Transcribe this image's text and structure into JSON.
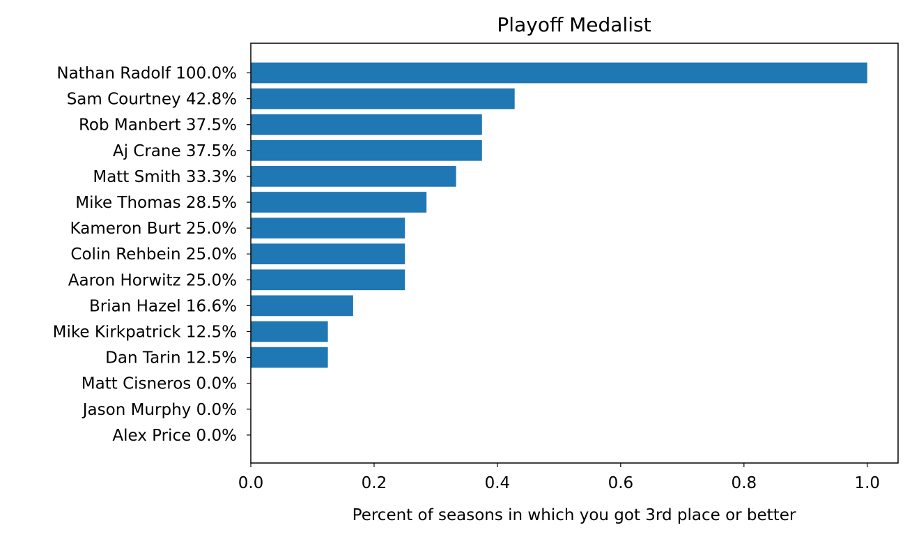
{
  "chart_data": {
    "type": "bar",
    "orientation": "horizontal",
    "title": "Playoff Medalist",
    "xlabel": "Percent of seasons in which you got 3rd place or better",
    "ylabel": "",
    "xlim": [
      0,
      1.05
    ],
    "xticks": [
      0.0,
      0.2,
      0.4,
      0.6,
      0.8,
      1.0
    ],
    "xtick_labels": [
      "0.0",
      "0.2",
      "0.4",
      "0.6",
      "0.8",
      "1.0"
    ],
    "grid": false,
    "bar_color": "#1f77b4",
    "categories": [
      "Nathan Radolf 100.0%",
      "Sam Courtney 42.8%",
      "Rob Manbert 37.5%",
      "Aj Crane 37.5%",
      "Matt Smith 33.3%",
      "Mike Thomas 28.5%",
      "Kameron Burt 25.0%",
      "Colin Rehbein 25.0%",
      "Aaron Horwitz 25.0%",
      "Brian Hazel 16.6%",
      "Mike Kirkpatrick 12.5%",
      "Dan Tarin 12.5%",
      "Matt Cisneros 0.0%",
      "Jason Murphy 0.0%",
      "Alex Price 0.0%"
    ],
    "values": [
      1.0,
      0.428,
      0.375,
      0.375,
      0.333,
      0.285,
      0.25,
      0.25,
      0.25,
      0.166,
      0.125,
      0.125,
      0.0,
      0.0,
      0.0
    ]
  }
}
